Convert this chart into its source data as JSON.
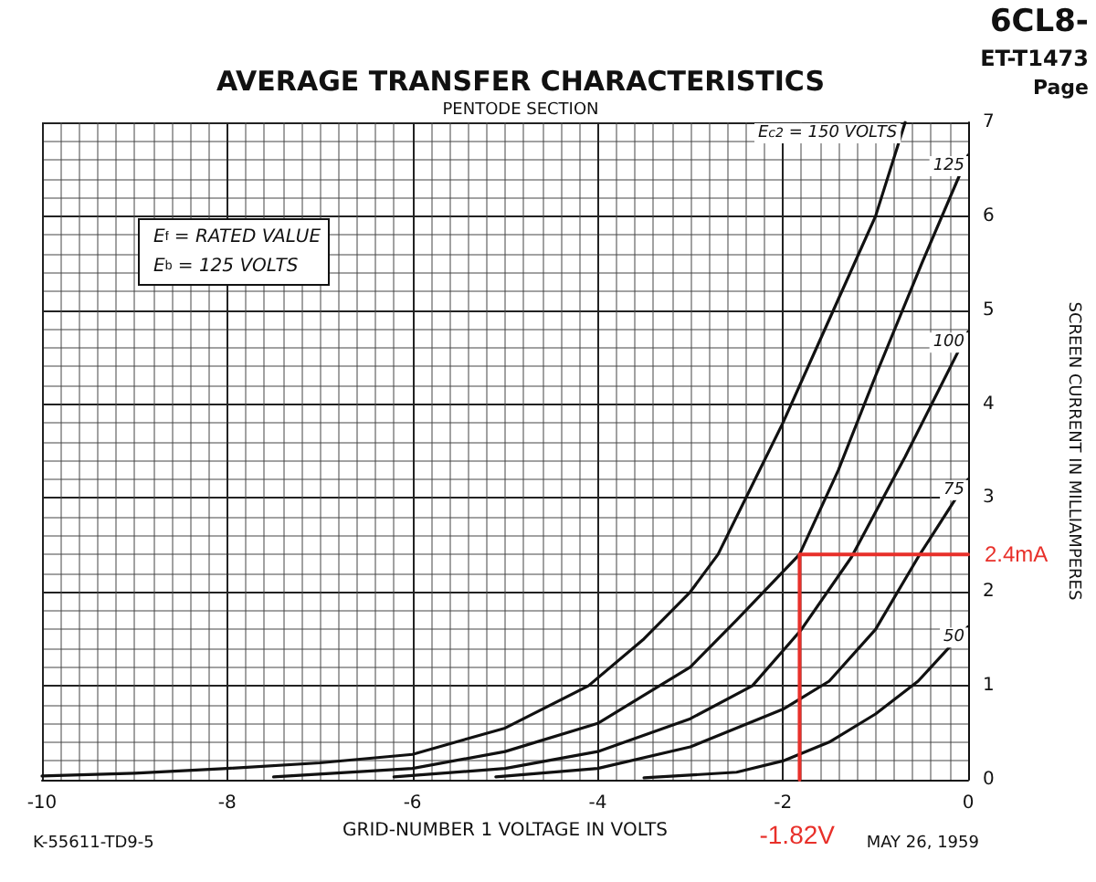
{
  "chart_data": {
    "type": "line",
    "title": "AVERAGE TRANSFER CHARACTERISTICS",
    "subtitle": "PENTODE SECTION",
    "xlabel": "GRID-NUMBER 1 VOLTAGE IN VOLTS",
    "ylabel": "SCREEN CURRENT IN MILLIAMPERES",
    "xlim": [
      -10,
      0
    ],
    "xticks": [
      -10,
      -8,
      -6,
      -4,
      -2,
      0
    ],
    "ylim": [
      0,
      7
    ],
    "yticks": [
      0,
      1,
      2,
      3,
      4,
      5,
      6,
      7
    ],
    "grid": true,
    "marker": "none",
    "line_style": "solid",
    "series": [
      {
        "name": "E$_{c2}$ = 150 VOLTS",
        "color": "#111111",
        "x": [
          -10,
          -9,
          -8,
          -7,
          -6,
          -5,
          -4.1,
          -3.5,
          -3,
          -2.7,
          -2.25,
          -2,
          -1.5,
          -1,
          -0.68
        ],
        "values": [
          0.04,
          0.07,
          0.12,
          0.18,
          0.27,
          0.55,
          1.0,
          1.5,
          2.0,
          2.4,
          3.3,
          3.8,
          4.9,
          6.0,
          7.0
        ]
      },
      {
        "name": "125",
        "color": "#111111",
        "x": [
          -7.5,
          -6,
          -5,
          -4,
          -3,
          -2.5,
          -1.82,
          -1.4,
          -1,
          -0.5,
          0
        ],
        "values": [
          0.03,
          0.12,
          0.3,
          0.6,
          1.2,
          1.7,
          2.4,
          3.3,
          4.3,
          5.5,
          6.65
        ]
      },
      {
        "name": "100",
        "color": "#111111",
        "x": [
          -6.2,
          -5,
          -4,
          -3,
          -2.33,
          -1.8,
          -1.26,
          -0.68,
          0
        ],
        "values": [
          0.03,
          0.12,
          0.3,
          0.65,
          1.0,
          1.6,
          2.37,
          3.44,
          4.77
        ]
      },
      {
        "name": "75",
        "color": "#111111",
        "x": [
          -5.1,
          -4,
          -3,
          -2,
          -1.5,
          -1,
          -0.54,
          0
        ],
        "values": [
          0.03,
          0.12,
          0.35,
          0.75,
          1.05,
          1.6,
          2.37,
          3.2
        ]
      },
      {
        "name": "50",
        "color": "#111111",
        "x": [
          -3.5,
          -2.5,
          -2,
          -1.5,
          -1,
          -0.54,
          0
        ],
        "values": [
          0.02,
          0.08,
          0.2,
          0.4,
          0.7,
          1.05,
          1.63
        ]
      },
      {
        "color": "#e8302a",
        "x": [
          -1.82,
          -1.82,
          0
        ],
        "values": [
          0,
          2.4,
          2.4
        ]
      }
    ],
    "annotations": [
      "E$_{f}$ = RATED VALUE",
      "E$_{b}$ = 125 VOLTS",
      "6CL8-",
      "ET-T1473",
      "Page",
      "K-55611-TD9-5",
      "MAY 26, 1959",
      {
        "text": "2.4mA",
        "x": 0,
        "y": 2.4
      },
      {
        "text": "-1.82V",
        "x": -1.82,
        "y": 0
      }
    ]
  }
}
